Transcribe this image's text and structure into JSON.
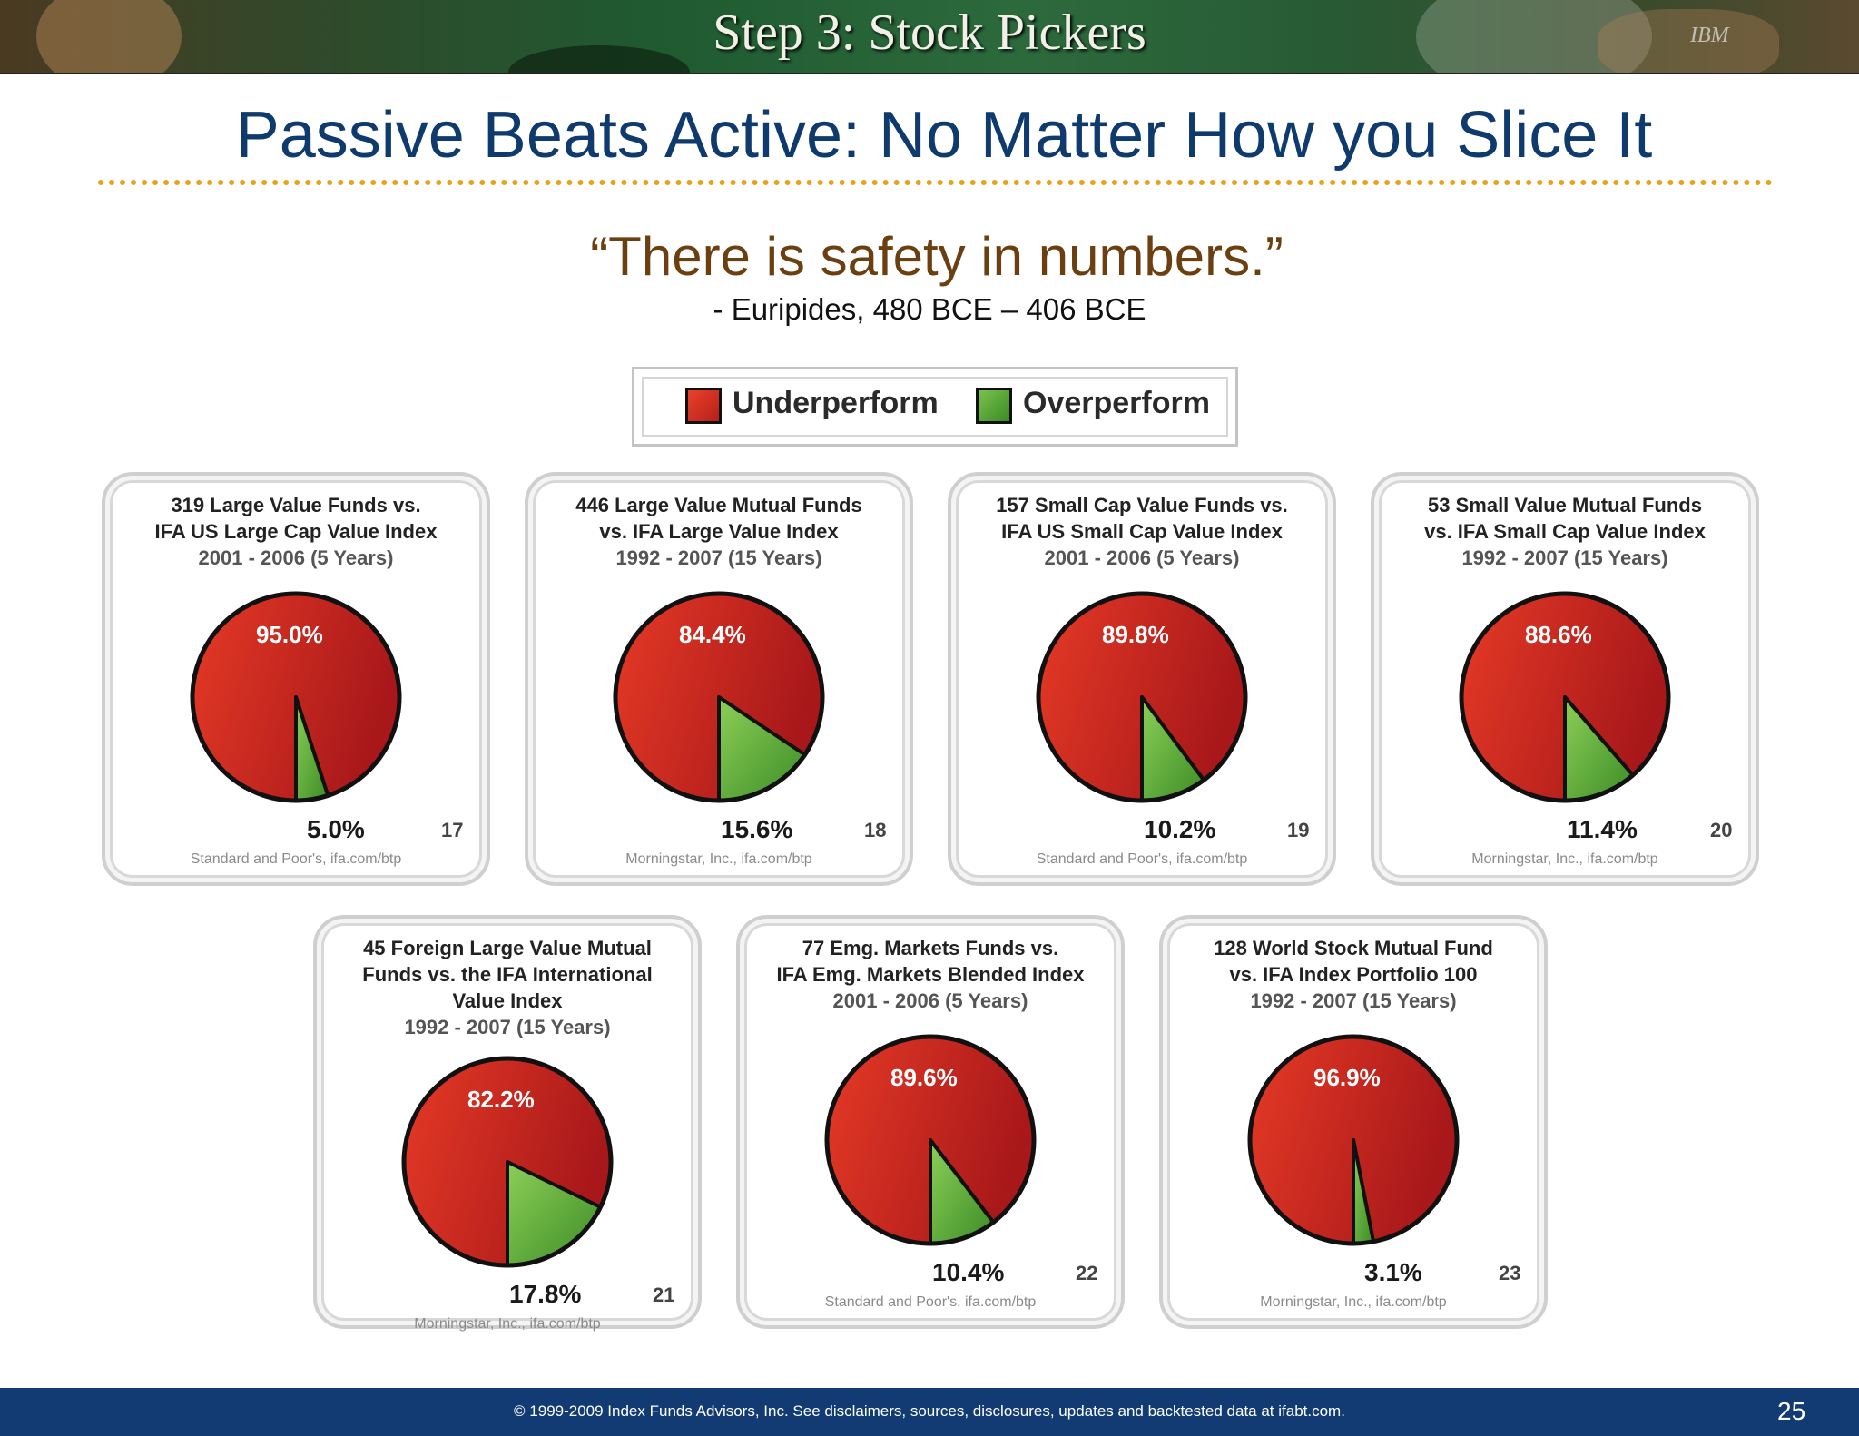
{
  "banner": {
    "title": "Step 3: Stock Pickers",
    "logo": "IBM"
  },
  "slide": {
    "title": "Passive Beats Active:  No Matter How you Slice It",
    "quote": "“There is safety in numbers.”",
    "attribution": "-  Euripides, 480 BCE – 406 BCE"
  },
  "legend": [
    {
      "label": "Underperform",
      "color": "#d92a1f"
    },
    {
      "label": "Overperform",
      "color": "#4a9a2e"
    }
  ],
  "colors": {
    "underperform": "#d92a1f",
    "overperform": "#5aa83a",
    "title": "#0f3a6e",
    "rule": "#e8a21a",
    "footer": "#123b73"
  },
  "chart_data": [
    {
      "type": "pie",
      "title_lines": [
        "319 Large Value Funds vs.",
        "IFA US Large Cap Value Index"
      ],
      "dates": "2001 - 2006 (5 Years)",
      "slices": [
        {
          "label": "Underperform",
          "value": 95.0,
          "text": "95.0%"
        },
        {
          "label": "Overperform",
          "value": 5.0,
          "text": "5.0%"
        }
      ],
      "number": "17",
      "source": "Standard and Poor's, ifa.com/btp"
    },
    {
      "type": "pie",
      "title_lines": [
        "446 Large Value Mutual Funds",
        "vs. IFA Large Value Index"
      ],
      "dates": "1992 - 2007 (15 Years)",
      "slices": [
        {
          "label": "Underperform",
          "value": 84.4,
          "text": "84.4%"
        },
        {
          "label": "Overperform",
          "value": 15.6,
          "text": "15.6%"
        }
      ],
      "number": "18",
      "source": "Morningstar, Inc., ifa.com/btp"
    },
    {
      "type": "pie",
      "title_lines": [
        "157 Small Cap Value Funds vs.",
        "IFA US Small Cap Value Index"
      ],
      "dates": "2001 - 2006 (5 Years)",
      "slices": [
        {
          "label": "Underperform",
          "value": 89.8,
          "text": "89.8%"
        },
        {
          "label": "Overperform",
          "value": 10.2,
          "text": "10.2%"
        }
      ],
      "number": "19",
      "source": "Standard and Poor's, ifa.com/btp"
    },
    {
      "type": "pie",
      "title_lines": [
        "53 Small Value Mutual Funds",
        "vs. IFA Small Cap Value Index"
      ],
      "dates": "1992 - 2007 (15 Years)",
      "slices": [
        {
          "label": "Underperform",
          "value": 88.6,
          "text": "88.6%"
        },
        {
          "label": "Overperform",
          "value": 11.4,
          "text": "11.4%"
        }
      ],
      "number": "20",
      "source": "Morningstar, Inc., ifa.com/btp"
    },
    {
      "type": "pie",
      "title_lines": [
        "45 Foreign Large Value Mutual",
        "Funds vs. the IFA International",
        "Value Index"
      ],
      "dates": "1992 - 2007 (15 Years)",
      "slices": [
        {
          "label": "Underperform",
          "value": 82.2,
          "text": "82.2%"
        },
        {
          "label": "Overperform",
          "value": 17.8,
          "text": "17.8%"
        }
      ],
      "number": "21",
      "source": "Morningstar, Inc., ifa.com/btp"
    },
    {
      "type": "pie",
      "title_lines": [
        "77 Emg. Markets Funds vs.",
        "IFA Emg. Markets Blended Index"
      ],
      "dates": "2001 - 2006 (5 Years)",
      "slices": [
        {
          "label": "Underperform",
          "value": 89.6,
          "text": "89.6%"
        },
        {
          "label": "Overperform",
          "value": 10.4,
          "text": "10.4%"
        }
      ],
      "number": "22",
      "source": "Standard and Poor's, ifa.com/btp"
    },
    {
      "type": "pie",
      "title_lines": [
        "128 World Stock Mutual Fund",
        "vs. IFA Index Portfolio 100"
      ],
      "dates": "1992 - 2007 (15 Years)",
      "slices": [
        {
          "label": "Underperform",
          "value": 96.9,
          "text": "96.9%"
        },
        {
          "label": "Overperform",
          "value": 3.1,
          "text": "3.1%"
        }
      ],
      "number": "23",
      "source": "Morningstar, Inc., ifa.com/btp"
    }
  ],
  "footer": {
    "text": "© 1999-2009 Index Funds Advisors, Inc. See disclaimers, sources, disclosures, updates and backtested data at ifabt.com.",
    "page_number": "25"
  }
}
